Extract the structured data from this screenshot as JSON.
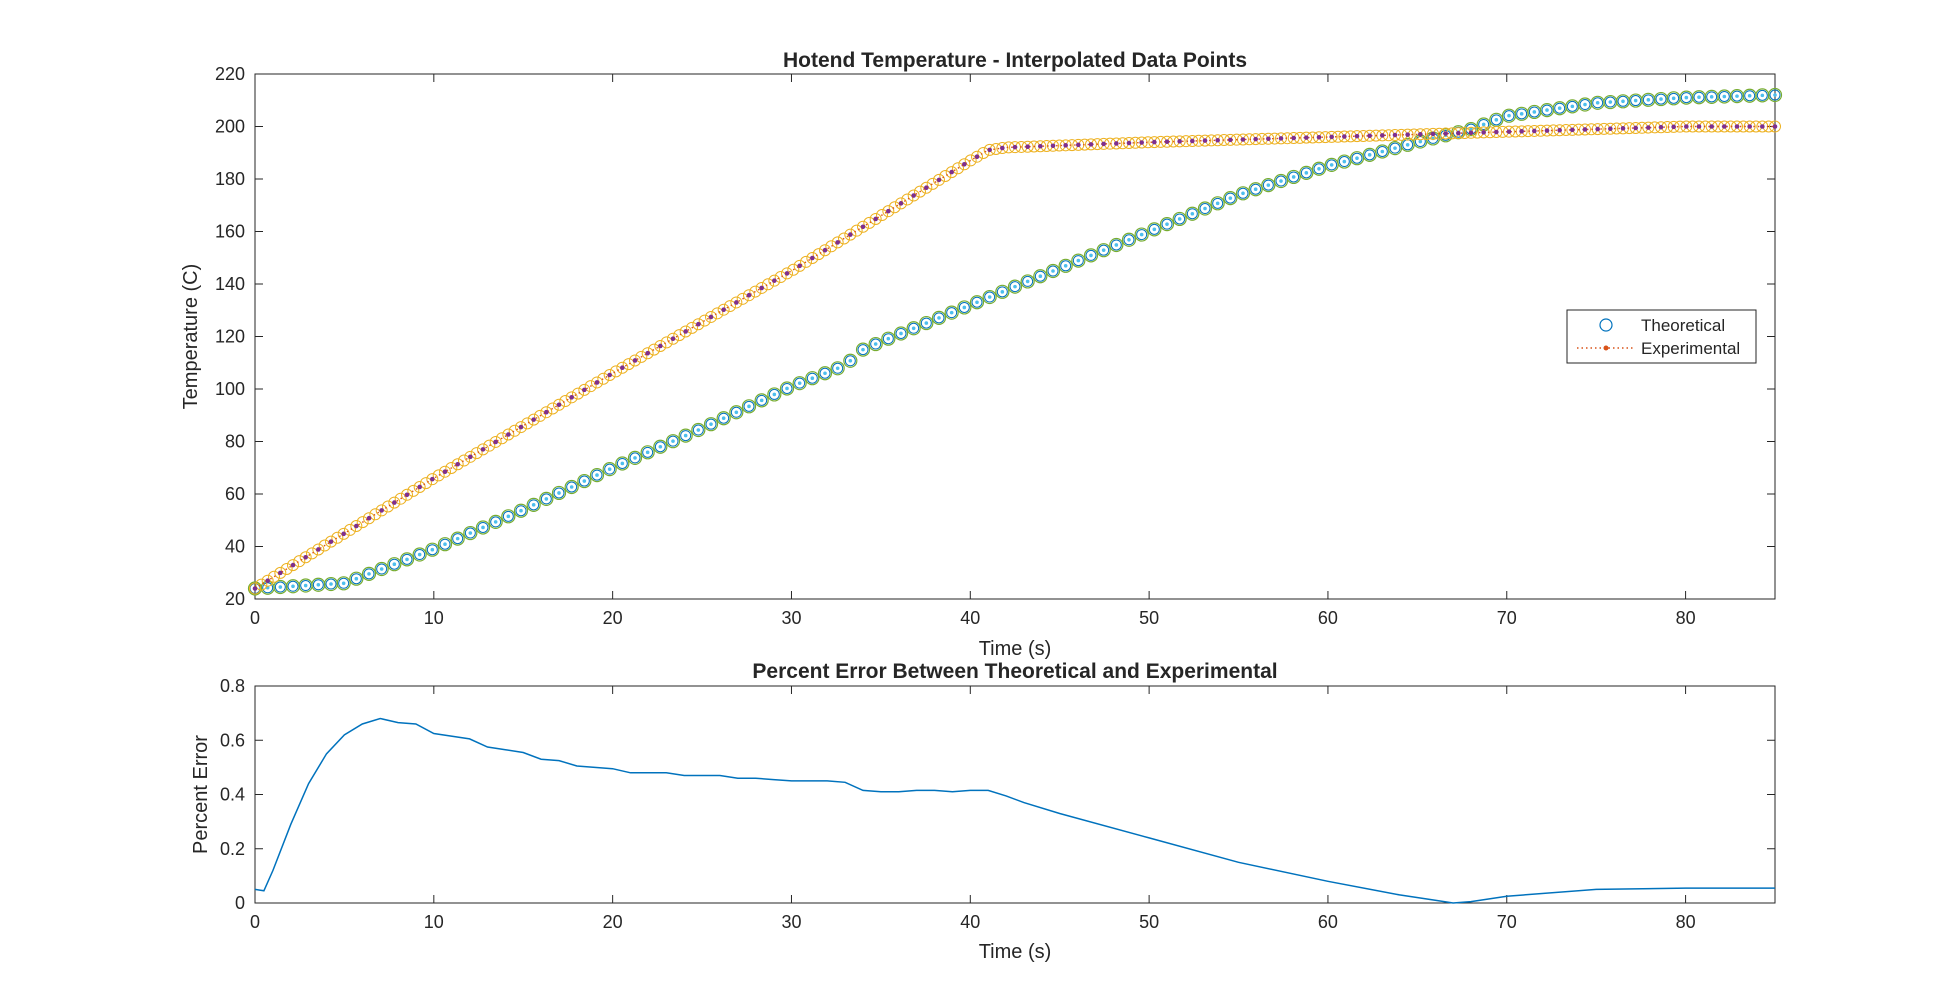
{
  "chart_data": [
    {
      "type": "scatter",
      "title": "Hotend Temperature - Interpolated Data Points",
      "xlabel": "Time (s)",
      "ylabel": "Temperature (C)",
      "xlim": [
        0,
        85
      ],
      "ylim": [
        20,
        220
      ],
      "xticks": [
        0,
        10,
        20,
        30,
        40,
        50,
        60,
        70,
        80
      ],
      "yticks": [
        20,
        40,
        60,
        80,
        100,
        120,
        140,
        160,
        180,
        200,
        220
      ],
      "grid": false,
      "legend": {
        "placement": "right",
        "entries": [
          "Theoretical",
          "Experimental"
        ]
      },
      "series": [
        {
          "name": "Theoretical",
          "marker": "circle",
          "color": "#0072BD",
          "fill_color": "#EDB120",
          "x": [
            0,
            5,
            10,
            15,
            20,
            25,
            30,
            33,
            34,
            35,
            40,
            45,
            50,
            55,
            60,
            65,
            68,
            70,
            75,
            80,
            85
          ],
          "y": [
            24,
            26,
            39,
            54,
            70,
            85,
            101,
            109,
            115,
            118,
            132,
            146,
            160,
            174,
            185,
            194,
            199,
            204,
            209,
            211,
            212
          ]
        },
        {
          "name": "Experimental",
          "marker": "dot",
          "line": "dotted",
          "color": "#D95319",
          "marker_color": "#7E2F8E",
          "halo_color": "#EDB120",
          "x": [
            0,
            10,
            20,
            30,
            40,
            41,
            42,
            50,
            60,
            65,
            70,
            80,
            85
          ],
          "y": [
            24,
            66,
            106,
            145,
            187,
            191,
            192,
            194,
            196,
            197,
            198,
            200,
            200
          ]
        }
      ]
    },
    {
      "type": "line",
      "title": "Percent Error Between Theoretical and Experimental",
      "xlabel": "Time (s)",
      "ylabel": "Percent Error",
      "xlim": [
        0,
        85
      ],
      "ylim": [
        0,
        0.8
      ],
      "xticks": [
        0,
        10,
        20,
        30,
        40,
        50,
        60,
        70,
        80
      ],
      "yticks": [
        0,
        0.2,
        0.4,
        0.6,
        0.8
      ],
      "grid": false,
      "series": [
        {
          "color": "#0072BD",
          "x": [
            0,
            0.5,
            1,
            2,
            3,
            4,
            5,
            6,
            7,
            8,
            9,
            10,
            12,
            13,
            14,
            15,
            16,
            17,
            18,
            19,
            20,
            21,
            22,
            23,
            24,
            26,
            27,
            28,
            29,
            30,
            31,
            32,
            33,
            34,
            35,
            36,
            37,
            38,
            39,
            40,
            41,
            42,
            43,
            45,
            50,
            55,
            60,
            64,
            66,
            67,
            68,
            70,
            75,
            80,
            85
          ],
          "y": [
            0.05,
            0.045,
            0.12,
            0.29,
            0.44,
            0.55,
            0.62,
            0.66,
            0.68,
            0.665,
            0.66,
            0.625,
            0.605,
            0.575,
            0.565,
            0.555,
            0.53,
            0.525,
            0.505,
            0.5,
            0.495,
            0.48,
            0.48,
            0.48,
            0.47,
            0.47,
            0.46,
            0.46,
            0.455,
            0.45,
            0.45,
            0.45,
            0.445,
            0.415,
            0.41,
            0.41,
            0.415,
            0.415,
            0.41,
            0.415,
            0.415,
            0.395,
            0.37,
            0.33,
            0.24,
            0.15,
            0.08,
            0.03,
            0.01,
            0.0,
            0.005,
            0.025,
            0.05,
            0.055,
            0.055
          ]
        }
      ]
    }
  ]
}
